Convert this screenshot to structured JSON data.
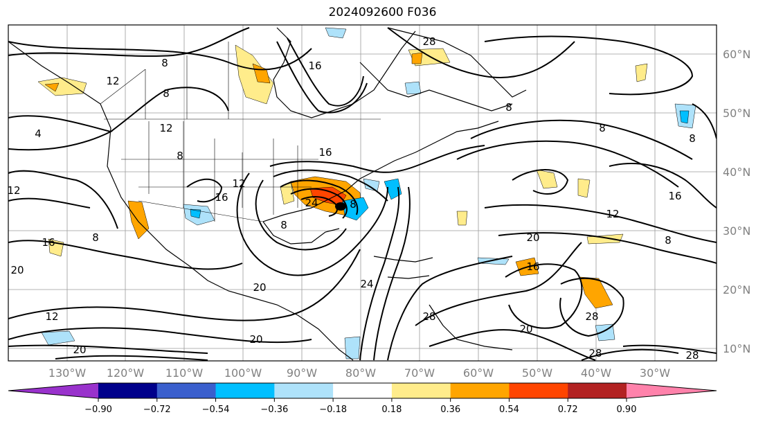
{
  "title": "2024092600 F036",
  "lon_ticks": [
    "130°W",
    "120°W",
    "110°W",
    "100°W",
    "90°W",
    "80°W",
    "70°W",
    "60°W",
    "50°W",
    "40°W",
    "30°W"
  ],
  "lat_ticks": [
    "60°N",
    "50°N",
    "40°N",
    "30°N",
    "20°N",
    "10°N"
  ],
  "contour_labels": [
    "8",
    "12",
    "4",
    "8",
    "12",
    "8",
    "12",
    "16",
    "12",
    "20",
    "16",
    "8",
    "8",
    "16",
    "20",
    "24",
    "28",
    "28",
    "20",
    "8",
    "12",
    "20",
    "24",
    "28",
    "12",
    "16",
    "20",
    "8",
    "8",
    "20",
    "28",
    "28",
    "8",
    "16",
    "16",
    "8"
  ],
  "colorbar": {
    "colors": [
      "#9932cc",
      "#00008b",
      "#3a5fcd",
      "#00bfff",
      "#aee2fa",
      "#ffffff",
      "#ffec8b",
      "#ffa500",
      "#ff4500",
      "#b22222",
      "#ff82ab"
    ],
    "ticks": [
      "−0.90",
      "−0.72",
      "−0.54",
      "−0.36",
      "−0.18",
      "0.18",
      "0.36",
      "0.54",
      "0.72",
      "0.90"
    ]
  }
}
